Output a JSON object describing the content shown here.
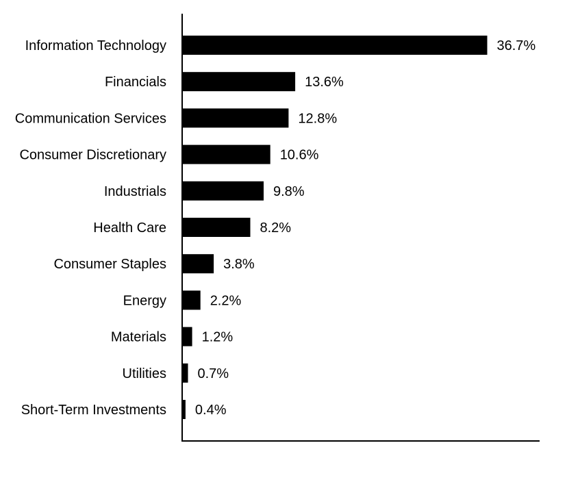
{
  "chart_data": {
    "type": "bar",
    "orientation": "horizontal",
    "categories": [
      "Information Technology",
      "Financials",
      "Communication Services",
      "Consumer Discretionary",
      "Industrials",
      "Health Care",
      "Consumer Staples",
      "Energy",
      "Materials",
      "Utilities",
      "Short-Term Investments"
    ],
    "values": [
      36.7,
      13.6,
      12.8,
      10.6,
      9.8,
      8.2,
      3.8,
      2.2,
      1.2,
      0.7,
      0.4
    ],
    "value_labels": [
      "36.7%",
      "13.6%",
      "12.8%",
      "10.6%",
      "9.8%",
      "8.2%",
      "3.8%",
      "2.2%",
      "1.2%",
      "0.7%",
      "0.4%"
    ],
    "value_unit": "%",
    "xlim": [
      0,
      43
    ],
    "grid": false,
    "legend": "none",
    "bar_color": "#000000"
  }
}
